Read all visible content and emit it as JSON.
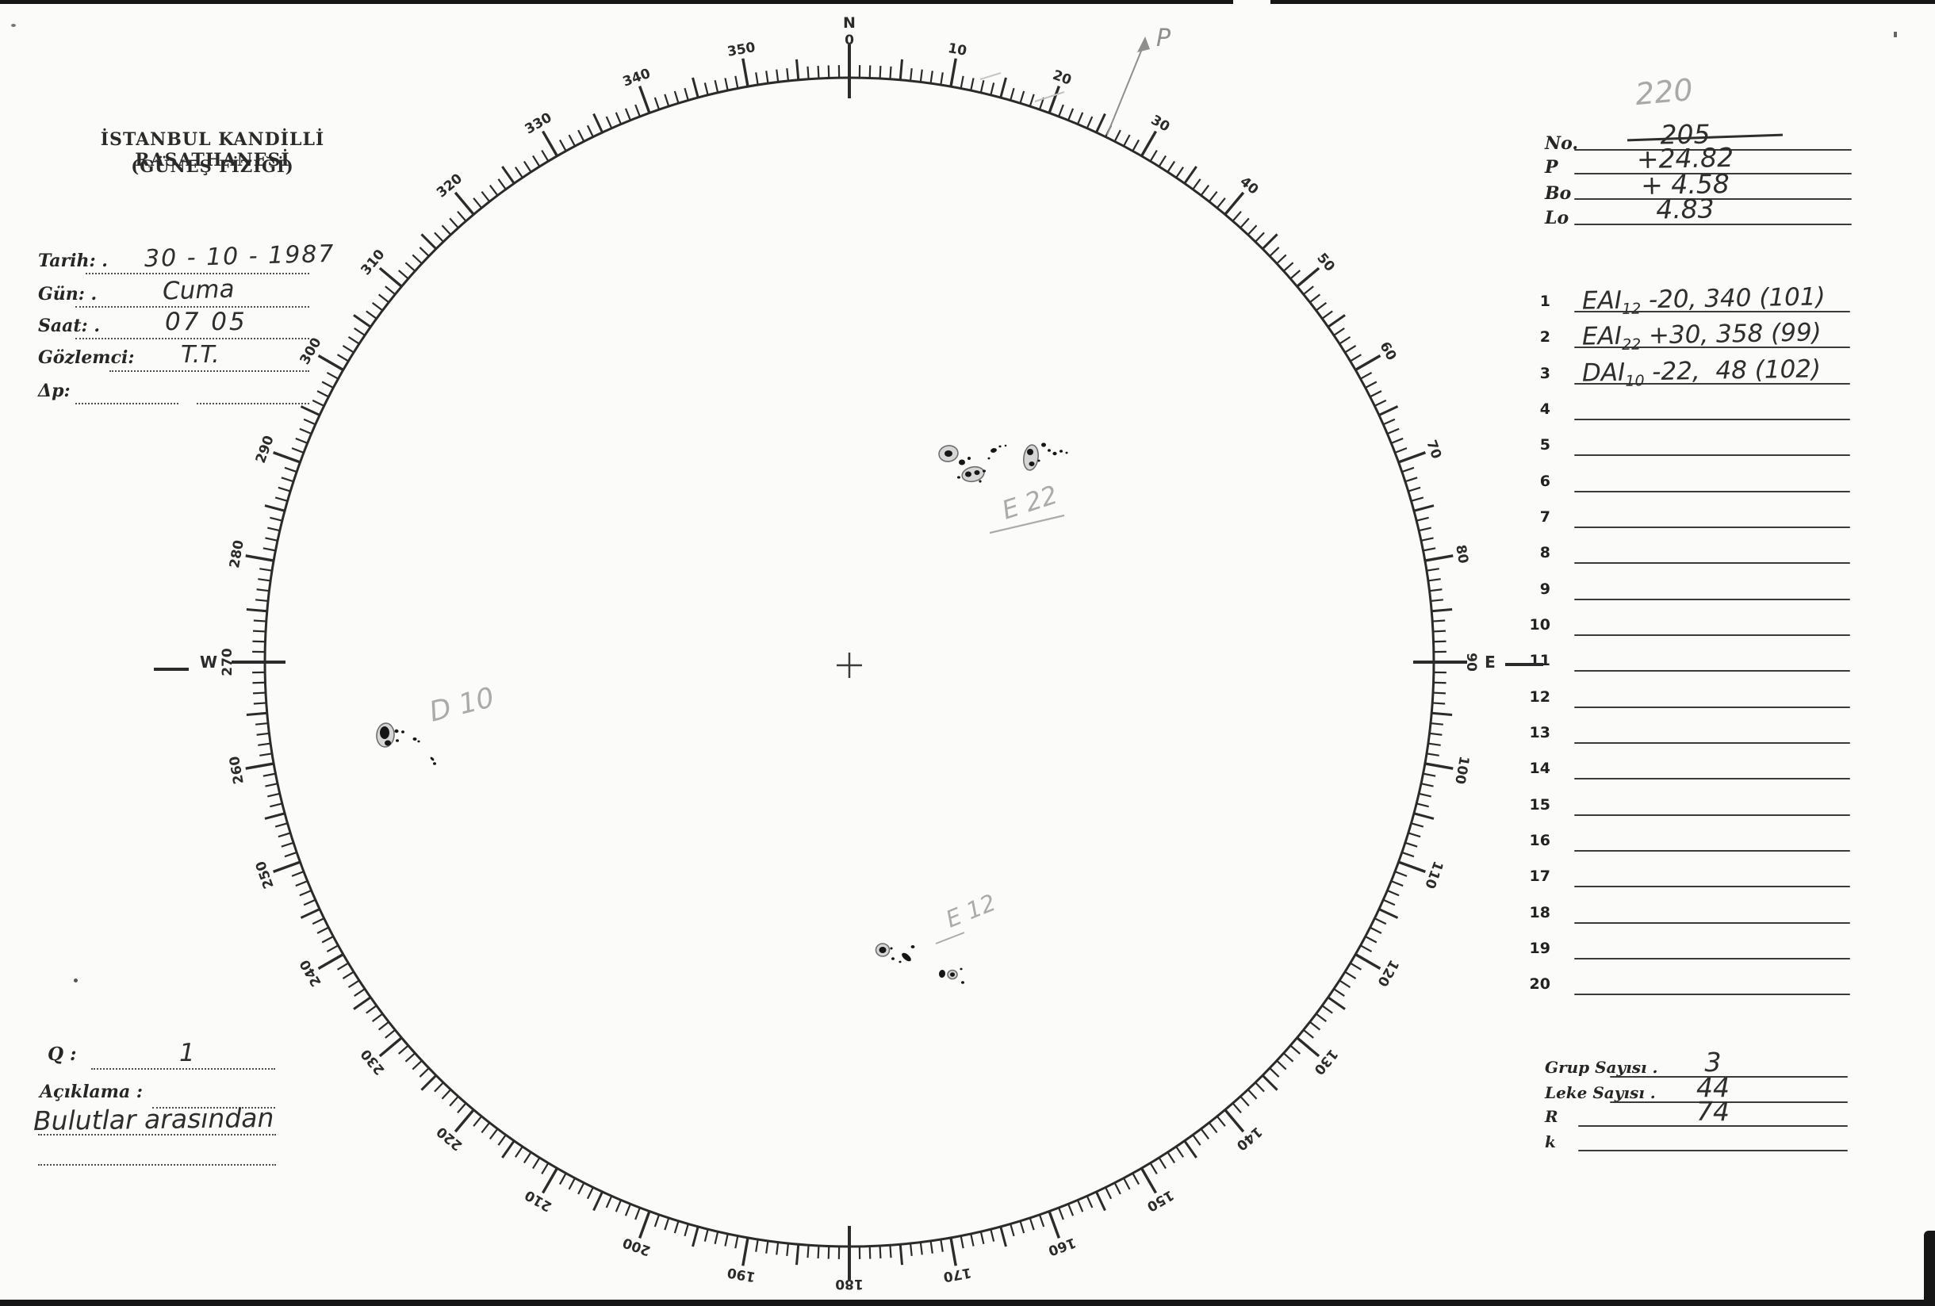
{
  "header": {
    "line1": "İSTANBUL KANDİLLİ RASATHANESİ",
    "line2": "(GÜNEŞ FİZİĞİ)"
  },
  "fields": [
    {
      "label": "Tarih: .",
      "value": "30 - 10 - 1987"
    },
    {
      "label": "Gün: .",
      "value": "Cuma"
    },
    {
      "label": "Saat: .",
      "value": "07 05"
    },
    {
      "label": "Gözlemci:",
      "value": "T.T."
    },
    {
      "label": "Δp:",
      "value": ""
    }
  ],
  "registry": {
    "pencil_note": "220",
    "rows": [
      {
        "label": "No.",
        "value": "205",
        "struck": true
      },
      {
        "label": "P",
        "value": "+24.82",
        "struck": false
      },
      {
        "label": "Bo",
        "value": "+ 4.58",
        "struck": false
      },
      {
        "label": "Lo",
        "value": "4.83",
        "struck": false
      }
    ]
  },
  "observations": {
    "row_count": 20,
    "entries": [
      {
        "num": 1,
        "pre": "EAI",
        "sub": "12",
        "rest": " -20, 340 (101)"
      },
      {
        "num": 2,
        "pre": "EAI",
        "sub": "22",
        "rest": " +30, 358 (99)"
      },
      {
        "num": 3,
        "pre": "DAI",
        "sub": "10",
        "rest": " -22,  48 (102)"
      }
    ]
  },
  "summary": [
    {
      "label": "Grup Sayısı .",
      "value": "3"
    },
    {
      "label": "Leke Sayısı .",
      "value": "44"
    },
    {
      "label": "R",
      "value": "74"
    },
    {
      "label": "k",
      "value": ""
    }
  ],
  "notes": {
    "q_label": "Q :",
    "q_value": "1",
    "aciklama_label": "Açıklama :",
    "note": "Bulutlar arasından"
  },
  "dial": {
    "compass_north": "N",
    "compass_east": "E",
    "compass_west": "W",
    "north_degree": "0",
    "degree_labels": [
      0,
      10,
      20,
      30,
      40,
      50,
      60,
      70,
      80,
      90,
      100,
      110,
      120,
      130,
      140,
      150,
      160,
      170,
      180,
      190,
      200,
      210,
      220,
      230,
      240,
      250,
      260,
      270,
      280,
      290,
      300,
      310,
      320,
      330,
      340,
      350
    ]
  },
  "annotations": {
    "p_mark": "P",
    "group_labels": [
      "E 22",
      "D 10",
      "E 12"
    ]
  },
  "ink": "#2b2b2b",
  "pencil_color": "#ababab"
}
